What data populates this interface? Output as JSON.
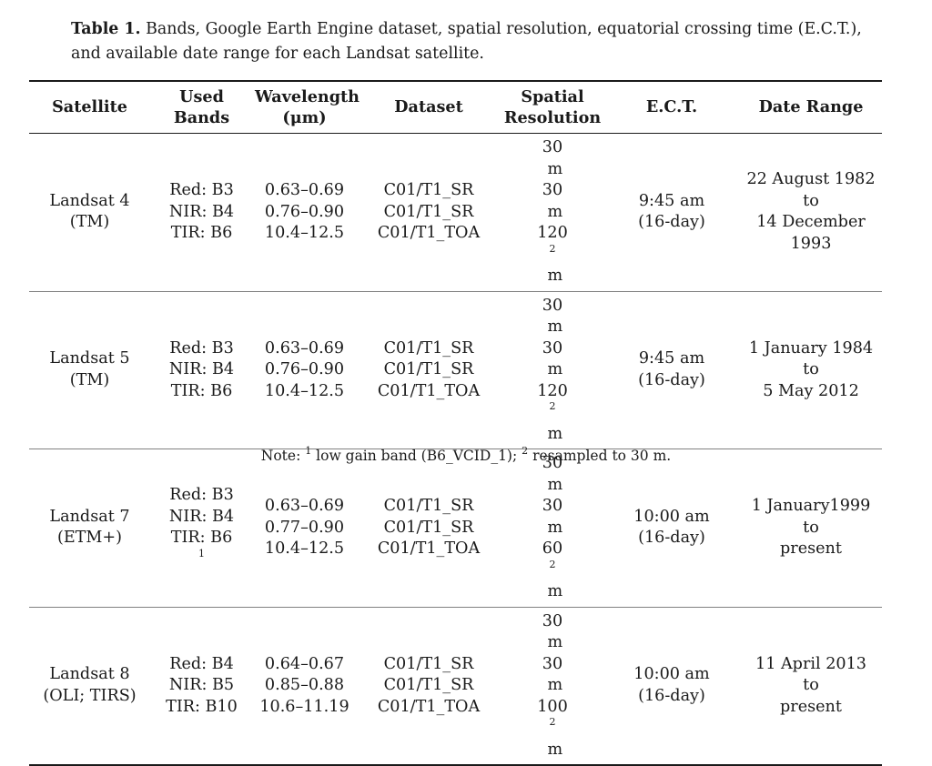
{
  "caption": {
    "label": "Table 1.",
    "text": "Bands, Google Earth Engine dataset, spatial resolution, equatorial crossing time (E.C.T.), and available date range for each Landsat satellite."
  },
  "headers": [
    [
      "Satellite"
    ],
    [
      "Used",
      "Bands"
    ],
    [
      "Wavelength",
      "(μm)"
    ],
    [
      "Dataset"
    ],
    [
      "Spatial",
      "Resolution"
    ],
    [
      "E.C.T."
    ],
    [
      "Date Range"
    ]
  ],
  "rows": [
    {
      "satellite": [
        "Landsat 4",
        "(TM)"
      ],
      "bands": [
        {
          "text": "Red: B3",
          "sup": ""
        },
        {
          "text": "NIR: B4",
          "sup": ""
        },
        {
          "text": "TIR: B6",
          "sup": ""
        }
      ],
      "wavelength": [
        "0.63–0.69",
        "0.76–0.90",
        "10.4–12.5"
      ],
      "dataset": [
        "C01/T1_SR",
        "C01/T1_SR",
        "C01/T1_TOA"
      ],
      "resolution": [
        {
          "base": "30",
          "sup": "",
          "unit": " m"
        },
        {
          "base": "30",
          "sup": "",
          "unit": " m"
        },
        {
          "base": "120",
          "sup": "2",
          "unit": " m"
        }
      ],
      "ect": [
        "9:45 am",
        "(16-day)"
      ],
      "date_range": [
        "22 August 1982",
        "to",
        "14 December",
        "1993"
      ]
    },
    {
      "satellite": [
        "Landsat 5",
        "(TM)"
      ],
      "bands": [
        {
          "text": "Red: B3",
          "sup": ""
        },
        {
          "text": "NIR: B4",
          "sup": ""
        },
        {
          "text": "TIR: B6",
          "sup": ""
        }
      ],
      "wavelength": [
        "0.63–0.69",
        "0.76–0.90",
        "10.4–12.5"
      ],
      "dataset": [
        "C01/T1_SR",
        "C01/T1_SR",
        "C01/T1_TOA"
      ],
      "resolution": [
        {
          "base": "30",
          "sup": "",
          "unit": " m"
        },
        {
          "base": "30",
          "sup": "",
          "unit": " m"
        },
        {
          "base": "120",
          "sup": "2",
          "unit": " m"
        }
      ],
      "ect": [
        "9:45 am",
        "(16-day)"
      ],
      "date_range": [
        "1 January 1984",
        "to",
        "5 May 2012"
      ]
    },
    {
      "satellite": [
        "Landsat 7",
        "(ETM+)"
      ],
      "bands": [
        {
          "text": "Red: B3",
          "sup": ""
        },
        {
          "text": "NIR: B4",
          "sup": ""
        },
        {
          "text": "TIR: B6",
          "sup": "1"
        }
      ],
      "wavelength": [
        "0.63–0.69",
        "0.77–0.90",
        "10.4–12.5"
      ],
      "dataset": [
        "C01/T1_SR",
        "C01/T1_SR",
        "C01/T1_TOA"
      ],
      "resolution": [
        {
          "base": "30",
          "sup": "",
          "unit": " m"
        },
        {
          "base": "30",
          "sup": "",
          "unit": " m"
        },
        {
          "base": "60",
          "sup": "2",
          "unit": " m"
        }
      ],
      "ect": [
        "10:00 am",
        "(16-day)"
      ],
      "date_range": [
        "1 January1999",
        "to",
        "present"
      ]
    },
    {
      "satellite": [
        "Landsat 8",
        "(OLI; TIRS)"
      ],
      "bands": [
        {
          "text": "Red: B4",
          "sup": ""
        },
        {
          "text": "NIR: B5",
          "sup": ""
        },
        {
          "text": "TIR: B10",
          "sup": ""
        }
      ],
      "wavelength": [
        "0.64–0.67",
        "0.85–0.88",
        "10.6–11.19"
      ],
      "dataset": [
        "C01/T1_SR",
        "C01/T1_SR",
        "C01/T1_TOA"
      ],
      "resolution": [
        {
          "base": "30",
          "sup": "",
          "unit": " m"
        },
        {
          "base": "30",
          "sup": "",
          "unit": " m"
        },
        {
          "base": "100",
          "sup": "2",
          "unit": " m"
        }
      ],
      "ect": [
        "10:00 am",
        "(16-day)"
      ],
      "date_range": [
        "11 April 2013",
        "to",
        "present"
      ]
    }
  ],
  "note": {
    "prefix": "Note: ",
    "sup1": "1",
    "text1": " low gain band (B6_VCID_1); ",
    "sup2": "2",
    "text2": " resampled to 30 m."
  }
}
